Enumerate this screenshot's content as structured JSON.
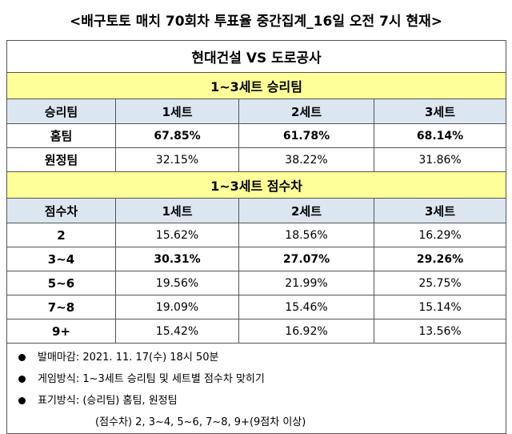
{
  "title": "<배구토토 매치 70회차 투표율 중간집계_16일 오전 7시 현재>",
  "match": "현대건설 VS 도로공사",
  "section1": {
    "title": "1~3세트 승리팀",
    "headers": [
      "승리팀",
      "1세트",
      "2세트",
      "3세트"
    ],
    "rows": [
      {
        "label": "홈팀",
        "values": [
          "67.85%",
          "61.78%",
          "68.14%"
        ],
        "bold": true
      },
      {
        "label": "원정팀",
        "values": [
          "32.15%",
          "38.22%",
          "31.86%"
        ],
        "bold": false
      }
    ]
  },
  "section2": {
    "title": "1~3세트 점수차",
    "headers": [
      "점수차",
      "1세트",
      "2세트",
      "3세트"
    ],
    "rows": [
      {
        "label": "2",
        "values": [
          "15.62%",
          "18.56%",
          "16.29%"
        ]
      },
      {
        "label": "3~4",
        "values": [
          "30.31%",
          "27.07%",
          "29.26%"
        ]
      },
      {
        "label": "5~6",
        "values": [
          "19.56%",
          "21.99%",
          "25.75%"
        ]
      },
      {
        "label": "7~8",
        "values": [
          "19.09%",
          "15.46%",
          "15.14%"
        ]
      },
      {
        "label": "9+",
        "values": [
          "15.42%",
          "16.92%",
          "13.56%"
        ]
      }
    ]
  },
  "notes": [
    "발매마감: 2021. 11. 17(수) 18시  50분",
    "게임방식: 1~3세트 승리팀 및 세트별 점수차 맞히기",
    "표기방식: (승리팀) 홈팀, 원정팀"
  ],
  "note_continuation": "(점수차) 2, 3~4, 5~6, 7~8, 9+(9점차 이상)"
}
